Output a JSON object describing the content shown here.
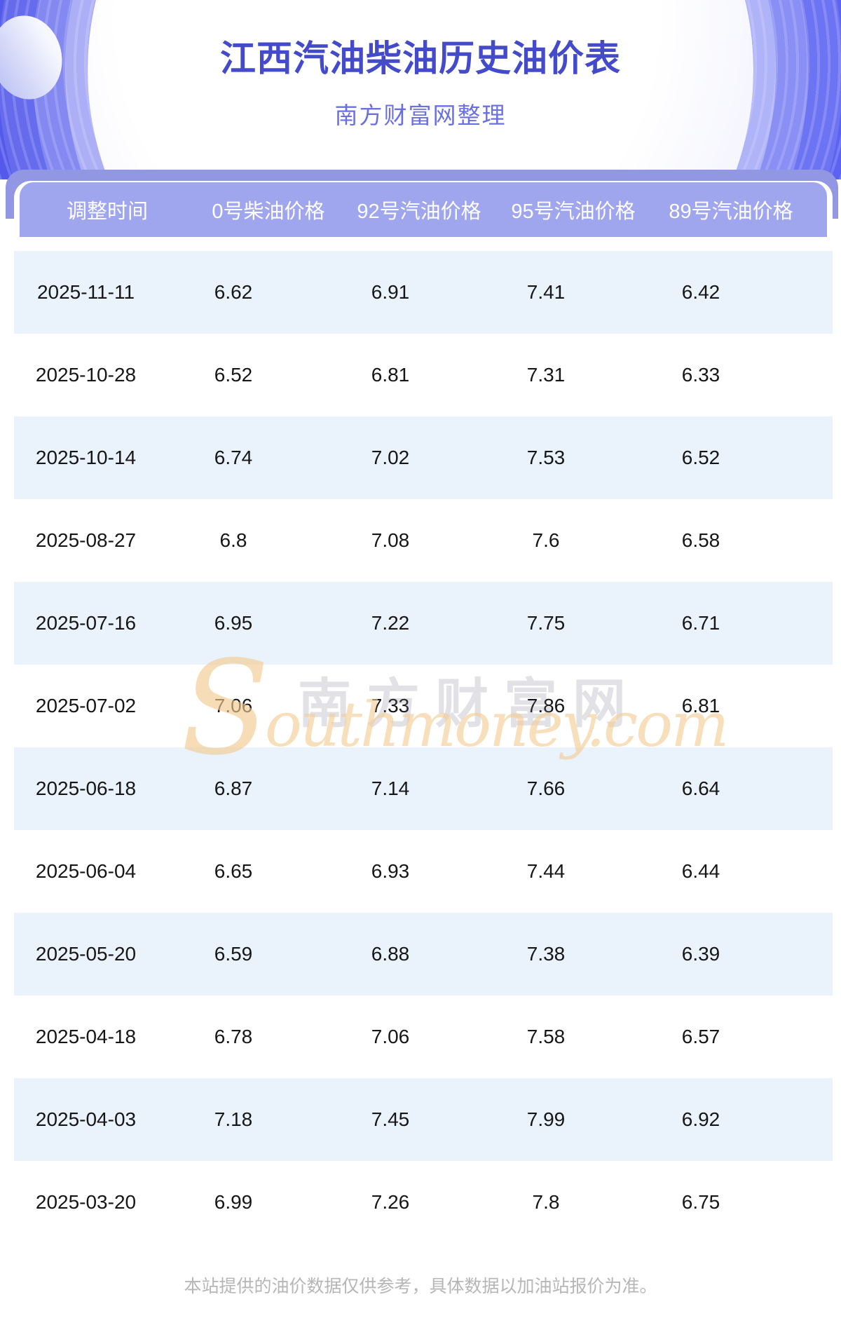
{
  "hero": {
    "title": "江西汽油柴油历史油价表",
    "subtitle": "南方财富网整理",
    "colors": {
      "background_left": "#5459ec",
      "background_right": "#5c63f2",
      "title_text": "#444bca",
      "subtitle_text": "#6a70e3"
    }
  },
  "table": {
    "columns": [
      "调整时间",
      "0号柴油价格",
      "92号汽油价格",
      "95号汽油价格",
      "89号汽油价格"
    ],
    "rows": [
      {
        "date": "2025-11-11",
        "values": [
          "6.62",
          "6.91",
          "7.41",
          "6.42"
        ]
      },
      {
        "date": "2025-10-28",
        "values": [
          "6.52",
          "6.81",
          "7.31",
          "6.33"
        ]
      },
      {
        "date": "2025-10-14",
        "values": [
          "6.74",
          "7.02",
          "7.53",
          "6.52"
        ]
      },
      {
        "date": "2025-08-27",
        "values": [
          "6.8",
          "7.08",
          "7.6",
          "6.58"
        ]
      },
      {
        "date": "2025-07-16",
        "values": [
          "6.95",
          "7.22",
          "7.75",
          "6.71"
        ]
      },
      {
        "date": "2025-07-02",
        "values": [
          "7.06",
          "7.33",
          "7.86",
          "6.81"
        ]
      },
      {
        "date": "2025-06-18",
        "values": [
          "6.87",
          "7.14",
          "7.66",
          "6.64"
        ]
      },
      {
        "date": "2025-06-04",
        "values": [
          "6.65",
          "6.93",
          "7.44",
          "6.44"
        ]
      },
      {
        "date": "2025-05-20",
        "values": [
          "6.59",
          "6.88",
          "7.38",
          "6.39"
        ]
      },
      {
        "date": "2025-04-18",
        "values": [
          "6.78",
          "7.06",
          "7.58",
          "6.57"
        ]
      },
      {
        "date": "2025-04-03",
        "values": [
          "7.18",
          "7.45",
          "7.99",
          "6.92"
        ]
      },
      {
        "date": "2025-03-20",
        "values": [
          "6.99",
          "7.26",
          "7.8",
          "6.75"
        ]
      }
    ],
    "colors": {
      "header_back_bar": "#9197e2",
      "header_bg": "#a0a6ee",
      "header_text": "#ffffff",
      "row_alt_bg": "#eaf2fb",
      "row_text": "#161616"
    }
  },
  "watermark": {
    "cjk_text": "南方财富网",
    "script_initial": "S",
    "script_rest": "outhmoney.com",
    "orange_color": "#f3cb91",
    "gray_color": "#7d7d8c"
  },
  "footer": {
    "disclaimer": "本站提供的油价数据仅供参考，具体数据以加油站报价为准。",
    "text_color": "#b6b6b6"
  }
}
